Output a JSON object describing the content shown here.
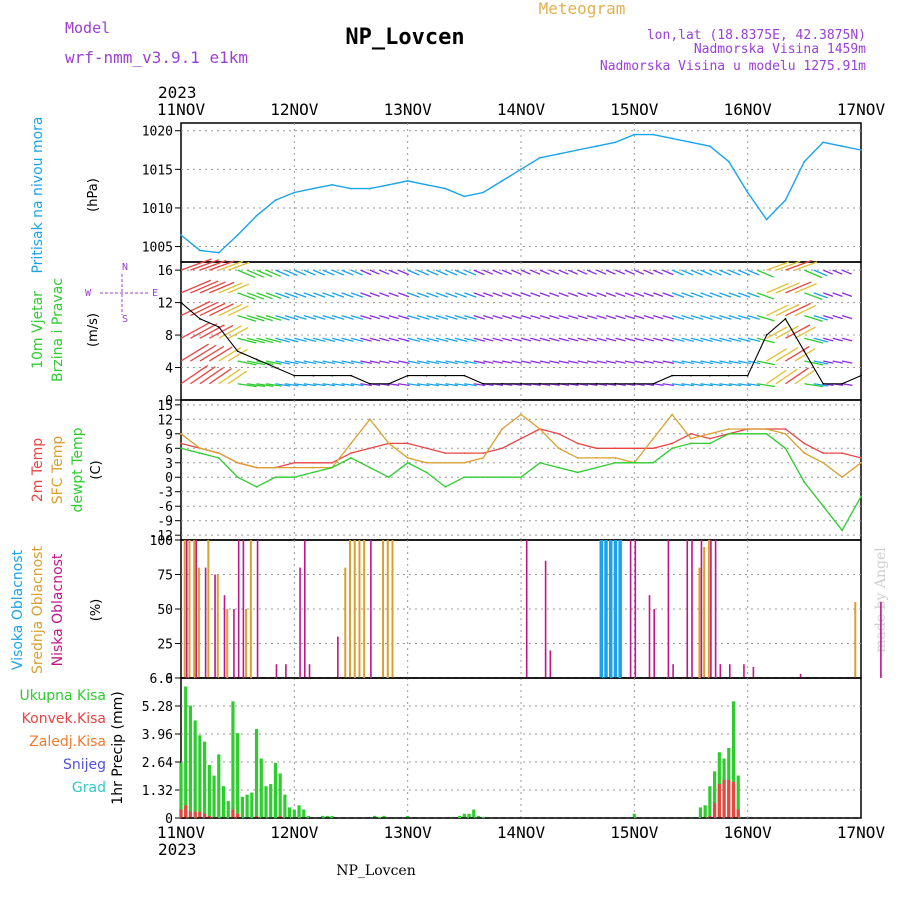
{
  "header": {
    "model_label": "Model",
    "model_name": "wrf-nmm_v3.9.1 e1km",
    "station": "NP_Lovcen",
    "product": "Meteogram",
    "lonlat": "lon,lat (18.8375E, 42.3875N)",
    "elevation": "Nadmorska Visina 1459m",
    "elevation_model": "Nadmorska Visina u modelu 1275.91m",
    "footer_station": "NP_Lovcen",
    "credit": "made by Angel"
  },
  "time_axis": {
    "year": "2023",
    "ticks": [
      "11NOV",
      "12NOV",
      "13NOV",
      "14NOV",
      "15NOV",
      "16NOV",
      "17NOV"
    ]
  },
  "colors": {
    "pressure": "#1aa3e8",
    "temp2m": "#e84545",
    "sfc": "#d9a030",
    "dew": "#2ecc2e",
    "high_cloud": "#1aa3e8",
    "mid_cloud": "#d9a030",
    "low_cloud": "#c0148c",
    "precip_total": "#2ecc2e",
    "precip_conv": "#e84545",
    "header_purple": "#9b3fd6",
    "header_gold": "#e0b050"
  },
  "panels": {
    "pressure": {
      "label": "Pritisak na nivou mora",
      "unit": "(hPa)",
      "ticks": [
        "1005",
        "1010",
        "1015",
        "1020"
      ]
    },
    "wind": {
      "label1": "10m Vjetar",
      "label2": "Brzina i Pravac",
      "unit": "(m/s)",
      "ticks": [
        "0",
        "4",
        "8",
        "12",
        "16"
      ],
      "compass": "N",
      "compass_e": "E",
      "compass_w": "W",
      "compass_s": "S"
    },
    "temp": {
      "label1": "2m Temp",
      "label2": "SFC Temp",
      "label3": "dewpt Temp",
      "unit": "(C)",
      "ticks": [
        "-12",
        "-9",
        "-6",
        "-3",
        "0",
        "3",
        "6",
        "9",
        "12",
        "15"
      ]
    },
    "cloud": {
      "label1": "Visoka Oblacnost",
      "label2": "Srednja Oblacnost",
      "label3": "Niska Oblacnost",
      "unit": "(%)",
      "ticks": [
        "0",
        "25",
        "50",
        "75",
        "100"
      ]
    },
    "precip": {
      "label_unit": "1hr Precip (mm)",
      "ticks": [
        "0",
        "1.32",
        "2.64",
        "3.96",
        "5.28",
        "6.6"
      ],
      "legend": [
        "Ukupna Kisa",
        "Konvek.Kisa",
        "Zaledj.Kisa",
        "Snijeg",
        "Grad"
      ],
      "legend_colors": [
        "#2ecc2e",
        "#e84545",
        "#f07a30",
        "#5050e0",
        "#30c8c0"
      ]
    }
  },
  "chart_data": [
    {
      "type": "line",
      "title": "",
      "ylabel": "Pritisak na nivou mora (hPa)",
      "ylim": [
        1003,
        1021
      ],
      "x_unit": "hours since 11NOV 00",
      "series": [
        {
          "name": "Pritisak na nivou mora",
          "x": [
            0,
            4,
            8,
            12,
            16,
            20,
            24,
            28,
            32,
            36,
            40,
            44,
            48,
            52,
            56,
            60,
            64,
            68,
            72,
            76,
            80,
            84,
            88,
            92,
            96,
            100,
            104,
            108,
            112,
            116,
            120,
            124,
            128,
            132,
            136,
            140,
            144
          ],
          "values": [
            1006.5,
            1004.5,
            1004.2,
            1006.5,
            1009,
            1011,
            1012,
            1012.5,
            1013,
            1012.5,
            1012.5,
            1013,
            1013.5,
            1013,
            1012.5,
            1011.5,
            1012,
            1013.5,
            1015,
            1016.5,
            1017,
            1017.5,
            1018,
            1018.5,
            1019.5,
            1019.5,
            1019,
            1018.5,
            1018,
            1016,
            1012,
            1008.5,
            1011,
            1016,
            1018.5,
            1018,
            1017.5
          ]
        }
      ]
    },
    {
      "type": "line",
      "title": "",
      "ylabel": "10m Vjetar Brzina i Pravac (m/s)",
      "ylim": [
        0,
        17
      ],
      "x_unit": "hours since 11NOV 00",
      "series": [
        {
          "name": "Brzina",
          "x": [
            0,
            4,
            8,
            12,
            16,
            20,
            24,
            28,
            32,
            36,
            40,
            44,
            48,
            52,
            56,
            60,
            64,
            68,
            72,
            76,
            80,
            84,
            88,
            92,
            96,
            100,
            104,
            108,
            112,
            116,
            120,
            124,
            128,
            132,
            136,
            140,
            144
          ],
          "values": [
            12,
            10,
            9,
            6,
            5,
            4,
            3,
            3,
            3,
            3,
            2,
            2,
            3,
            3,
            3,
            3,
            2,
            2,
            2,
            2,
            2,
            2,
            2,
            2,
            2,
            2,
            3,
            3,
            3,
            3,
            3,
            8,
            10,
            6,
            2,
            2,
            3
          ]
        }
      ]
    },
    {
      "type": "line",
      "title": "",
      "ylabel": "Temp (C)",
      "ylim": [
        -12,
        15
      ],
      "x_unit": "hours since 11NOV 00",
      "series": [
        {
          "name": "2m Temp",
          "x": [
            0,
            4,
            8,
            12,
            16,
            20,
            24,
            28,
            32,
            36,
            40,
            44,
            48,
            52,
            56,
            60,
            64,
            68,
            72,
            76,
            80,
            84,
            88,
            92,
            96,
            100,
            104,
            108,
            112,
            116,
            120,
            124,
            128,
            132,
            136,
            140,
            144
          ],
          "values": [
            7,
            6,
            5,
            3,
            2,
            2,
            3,
            3,
            3,
            5,
            6,
            7,
            7,
            6,
            5,
            5,
            5,
            6,
            8,
            10,
            9,
            7,
            6,
            6,
            6,
            6,
            7,
            9,
            8,
            9,
            10,
            10,
            10,
            7,
            5,
            5,
            4
          ]
        },
        {
          "name": "SFC Temp",
          "x": [
            0,
            4,
            8,
            12,
            16,
            20,
            24,
            28,
            32,
            36,
            40,
            44,
            48,
            52,
            56,
            60,
            64,
            68,
            72,
            76,
            80,
            84,
            88,
            92,
            96,
            100,
            104,
            108,
            112,
            116,
            120,
            124,
            128,
            132,
            136,
            140,
            144
          ],
          "values": [
            9,
            6,
            5,
            3,
            2,
            2,
            2,
            2,
            2,
            7,
            12,
            7,
            4,
            3,
            3,
            3,
            4,
            10,
            13,
            10,
            6,
            4,
            4,
            4,
            3,
            8,
            13,
            8,
            9,
            10,
            10,
            10,
            9,
            5,
            3,
            0,
            3
          ]
        },
        {
          "name": "dewpt Temp",
          "x": [
            0,
            4,
            8,
            12,
            16,
            20,
            24,
            28,
            32,
            36,
            40,
            44,
            48,
            52,
            56,
            60,
            64,
            68,
            72,
            76,
            80,
            84,
            88,
            92,
            96,
            100,
            104,
            108,
            112,
            116,
            120,
            124,
            128,
            132,
            136,
            140,
            144
          ],
          "values": [
            6,
            5,
            4,
            0,
            -2,
            0,
            0,
            1,
            2,
            4,
            2,
            0,
            3,
            1,
            -2,
            0,
            0,
            0,
            0,
            3,
            2,
            1,
            2,
            3,
            3,
            3,
            6,
            7,
            7,
            9,
            9,
            9,
            6,
            -1,
            -6,
            -11,
            -4
          ]
        }
      ]
    },
    {
      "type": "bar",
      "title": "",
      "ylabel": "Oblacnost (%)",
      "ylim": [
        0,
        100
      ],
      "x_unit": "hours since 11NOV 00",
      "series": [
        {
          "name": "Visoka Oblacnost",
          "x": [
            89,
            90,
            91,
            92,
            93
          ],
          "values": [
            100,
            100,
            100,
            100,
            100
          ]
        },
        {
          "name": "Srednja Oblacnost",
          "x": [
            1,
            2,
            3,
            4,
            6,
            8,
            10,
            14,
            15,
            35,
            36,
            37,
            38,
            39,
            43,
            44,
            45,
            110,
            111,
            112,
            143
          ],
          "values": [
            100,
            100,
            100,
            80,
            100,
            75,
            50,
            50,
            100,
            80,
            100,
            100,
            100,
            100,
            100,
            100,
            100,
            80,
            95,
            100,
            55
          ]
        },
        {
          "name": "Niska Oblacnost",
          "x": [
            1,
            3,
            5,
            7,
            9,
            11,
            12,
            13,
            16,
            20,
            22,
            25,
            26,
            27,
            33,
            40,
            73,
            77,
            78,
            95,
            96,
            99,
            100,
            103,
            104,
            107,
            108,
            110,
            112,
            113,
            114,
            116,
            119,
            121,
            131,
            148
          ],
          "values": [
            100,
            100,
            80,
            75,
            60,
            50,
            100,
            100,
            100,
            10,
            10,
            80,
            100,
            10,
            30,
            100,
            100,
            85,
            20,
            100,
            100,
            60,
            50,
            100,
            10,
            100,
            100,
            100,
            100,
            100,
            10,
            10,
            10,
            8,
            3,
            55
          ]
        }
      ]
    },
    {
      "type": "bar",
      "title": "",
      "ylabel": "1hr Precip (mm)",
      "ylim": [
        0,
        6.6
      ],
      "x_unit": "hours since 11NOV 00",
      "series": [
        {
          "name": "Ukupna Kisa",
          "x": [
            0,
            1,
            2,
            3,
            4,
            5,
            6,
            7,
            8,
            9,
            10,
            11,
            12,
            13,
            14,
            15,
            16,
            17,
            18,
            19,
            20,
            21,
            22,
            23,
            24,
            25,
            26,
            27,
            28,
            29,
            30,
            31,
            32,
            33,
            34,
            35,
            36,
            37,
            38,
            39,
            40,
            41,
            42,
            43,
            44,
            45,
            46,
            47,
            48,
            59,
            60,
            61,
            62,
            63,
            64,
            96,
            110,
            111,
            112,
            113,
            114,
            115,
            116,
            117,
            118
          ],
          "values": [
            2.6,
            6.2,
            5.3,
            4.6,
            3.9,
            3.6,
            2.5,
            2.0,
            3.0,
            1.5,
            0.8,
            5.5,
            4.0,
            1.0,
            1.1,
            1.2,
            4.2,
            2.8,
            1.5,
            1.6,
            2.6,
            2.1,
            1.1,
            0.5,
            0.4,
            0.6,
            0.4,
            0.1,
            0.0,
            0.0,
            0.1,
            0.1,
            0.1,
            0.0,
            0.0,
            0.0,
            0.0,
            0.0,
            0.0,
            0.0,
            0.0,
            0.1,
            0.05,
            0.1,
            0.0,
            0.0,
            0.0,
            0.0,
            0.1,
            0.1,
            0.2,
            0.2,
            0.4,
            0.1,
            0.05,
            0.2,
            0.5,
            0.6,
            1.5,
            2.2,
            3.1,
            2.8,
            3.3,
            5.5,
            2.0
          ]
        },
        {
          "name": "Konvek.Kisa",
          "x": [
            0,
            1,
            2,
            3,
            4,
            5,
            6,
            11,
            12,
            16,
            21,
            112,
            113,
            114,
            115,
            116,
            117,
            118
          ],
          "values": [
            0.4,
            0.6,
            0.3,
            0.3,
            0.3,
            0.2,
            0.1,
            0.4,
            0.2,
            0.1,
            0.1,
            0.1,
            0.7,
            1.6,
            1.8,
            1.8,
            1.7,
            0.4
          ]
        }
      ]
    }
  ]
}
